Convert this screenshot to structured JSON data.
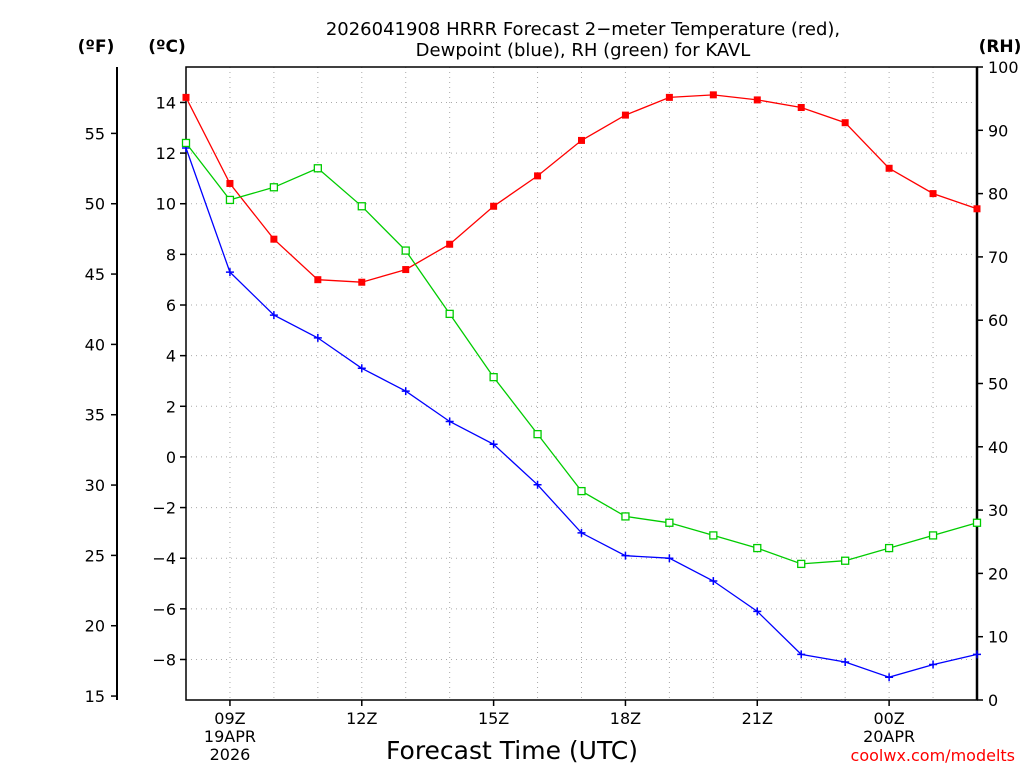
{
  "chart_data": {
    "type": "line",
    "title_lines": [
      "2026041908 HRRR Forecast 2−meter Temperature (red),",
      "Dewpoint (blue), RH (green) for KAVL"
    ],
    "xlabel": "Forecast Time (UTC)",
    "credit": "coolwx.com/modelts",
    "units": {
      "fahrenheit": "(ºF)",
      "celsius": "(ºC)",
      "rh": "(RH)"
    },
    "x_hours": [
      8,
      9,
      10,
      11,
      12,
      13,
      14,
      15,
      16,
      17,
      18,
      19,
      20,
      21,
      22,
      23,
      24,
      25,
      26
    ],
    "x_range": [
      8,
      26
    ],
    "x_ticks": [
      {
        "hour": 9,
        "lines": [
          "09Z",
          "19APR",
          "2026"
        ]
      },
      {
        "hour": 12,
        "lines": [
          "12Z"
        ]
      },
      {
        "hour": 15,
        "lines": [
          "15Z"
        ]
      },
      {
        "hour": 18,
        "lines": [
          "18Z"
        ]
      },
      {
        "hour": 21,
        "lines": [
          "21Z"
        ]
      },
      {
        "hour": 24,
        "lines": [
          "00Z",
          "20APR"
        ]
      }
    ],
    "celsius_axis": {
      "range": [
        -9.6,
        15.4
      ],
      "ticks": [
        14,
        12,
        10,
        8,
        6,
        4,
        2,
        0,
        -2,
        -4,
        -6,
        -8
      ]
    },
    "fahrenheit_axis": {
      "ticks": [
        55,
        50,
        45,
        40,
        35,
        30,
        25,
        20,
        15
      ]
    },
    "rh_axis": {
      "range": [
        0,
        100
      ],
      "ticks": [
        100,
        90,
        80,
        70,
        60,
        50,
        40,
        30,
        20,
        10,
        0
      ]
    },
    "series": [
      {
        "name": "Temperature",
        "unit": "C",
        "color": "#ff0000",
        "marker": "filled-square",
        "values": [
          14.2,
          10.8,
          8.6,
          7.0,
          6.9,
          7.4,
          8.4,
          9.9,
          11.1,
          12.5,
          13.5,
          14.2,
          14.3,
          14.1,
          13.8,
          13.2,
          11.4,
          10.4,
          9.8
        ]
      },
      {
        "name": "Dewpoint",
        "unit": "C",
        "color": "#0000ff",
        "marker": "plus",
        "values": [
          12.2,
          7.3,
          5.6,
          4.7,
          3.5,
          2.6,
          1.4,
          0.5,
          -1.1,
          -3.0,
          -3.9,
          -4.0,
          -4.9,
          -6.1,
          -7.8,
          -8.1,
          -8.7,
          -8.2,
          -7.8
        ]
      },
      {
        "name": "Relative Humidity",
        "unit": "%",
        "color": "#00cc00",
        "marker": "open-square",
        "values": [
          88,
          79,
          81,
          84,
          78,
          71,
          61,
          51,
          42,
          33,
          29,
          28,
          26,
          24,
          21.5,
          22,
          24,
          26,
          28
        ]
      }
    ]
  }
}
